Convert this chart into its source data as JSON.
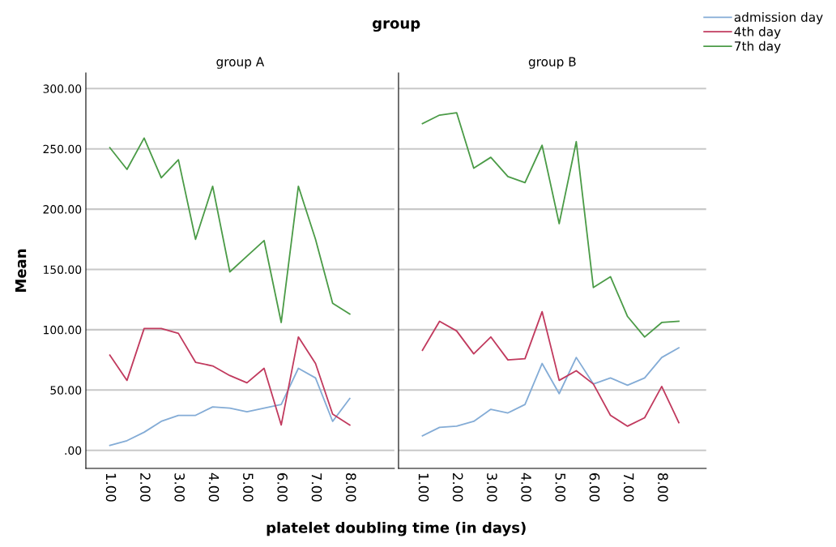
{
  "chart_data": [
    {
      "type": "line",
      "title": "group A",
      "ylabel": "Mean",
      "xlabel": "platelet doubling time (in days)",
      "annotations": [
        "group"
      ],
      "legend": "top right",
      "grid": "y",
      "line_style": "solid",
      "marker": "none",
      "x": [
        1,
        1.5,
        2,
        2.5,
        3,
        3.5,
        4,
        4.5,
        5,
        5.5,
        6,
        6.5,
        7,
        7.5,
        8
      ],
      "xlim": [
        0.3,
        9.3
      ],
      "xticks": [
        {
          "value": 1,
          "label": "1.00"
        },
        {
          "value": 2,
          "label": "2.00"
        },
        {
          "value": 3,
          "label": "3.00"
        },
        {
          "value": 4,
          "label": "4.00"
        },
        {
          "value": 5,
          "label": "5.00"
        },
        {
          "value": 6,
          "label": "6.00"
        },
        {
          "value": 7,
          "label": "7.00"
        },
        {
          "value": 8,
          "label": "8.00"
        }
      ],
      "ylim": [
        -15,
        313
      ],
      "yticks": [
        {
          "value": 0,
          "label": ".00"
        },
        {
          "value": 50,
          "label": "50.00"
        },
        {
          "value": 100,
          "label": "100.00"
        },
        {
          "value": 150,
          "label": "150.00"
        },
        {
          "value": 200,
          "label": "200.00"
        },
        {
          "value": 250,
          "label": "250.00"
        },
        {
          "value": 300,
          "label": "300.00"
        }
      ],
      "series": [
        {
          "name": "admission day",
          "color": "#84acd6",
          "values": [
            4,
            8,
            15,
            24,
            29,
            29,
            36,
            35,
            32,
            35,
            38,
            68,
            60,
            24,
            43
          ]
        },
        {
          "name": "4th day",
          "color": "#c13a5e",
          "values": [
            79,
            58,
            101,
            101,
            97,
            73,
            70,
            62,
            56,
            68,
            21,
            94,
            72,
            30,
            21
          ]
        },
        {
          "name": "7th day",
          "color": "#4b9b47",
          "values": [
            251,
            233,
            259,
            226,
            241,
            175,
            219,
            148,
            161,
            174,
            106,
            219,
            175,
            122,
            113
          ]
        }
      ]
    },
    {
      "type": "line",
      "title": "group B",
      "tick_labels": "x",
      "grid": "y",
      "line_style": "solid",
      "marker": "none",
      "x": [
        1,
        1.5,
        2,
        2.5,
        3,
        3.5,
        4,
        4.5,
        5,
        5.5,
        6,
        6.5,
        7,
        7.5,
        8,
        8.5
      ],
      "xlim": [
        0.3,
        9.3
      ],
      "xticks": [
        {
          "value": 1,
          "label": "1.00"
        },
        {
          "value": 2,
          "label": "2.00"
        },
        {
          "value": 3,
          "label": "3.00"
        },
        {
          "value": 4,
          "label": "4.00"
        },
        {
          "value": 5,
          "label": "5.00"
        },
        {
          "value": 6,
          "label": "6.00"
        },
        {
          "value": 7,
          "label": "7.00"
        },
        {
          "value": 8,
          "label": "8.00"
        }
      ],
      "ylim": [
        -15,
        313
      ],
      "yticks": [
        0,
        50,
        100,
        150,
        200,
        250,
        300
      ],
      "series": [
        {
          "color": "#84acd6",
          "values": [
            12,
            19,
            20,
            24,
            34,
            31,
            38,
            72,
            47,
            77,
            55,
            60,
            54,
            60,
            77,
            85
          ]
        },
        {
          "color": "#c13a5e",
          "values": [
            83,
            107,
            99,
            80,
            94,
            75,
            76,
            115,
            58,
            66,
            55,
            29,
            20,
            27,
            53,
            23
          ]
        },
        {
          "color": "#4b9b47",
          "values": [
            271,
            278,
            280,
            234,
            243,
            227,
            222,
            253,
            188,
            256,
            135,
            144,
            111,
            94,
            106,
            107
          ]
        }
      ]
    }
  ]
}
